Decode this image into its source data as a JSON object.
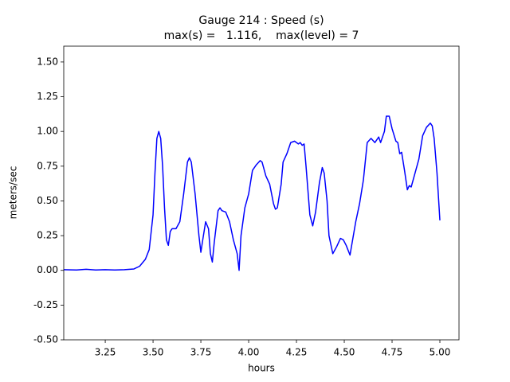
{
  "chart_data": {
    "type": "line",
    "title": "Gauge 214 : Speed (s)",
    "subtitle": "max(s) =   1.116,    max(level) = 7",
    "xlabel": "hours",
    "ylabel": "meters/sec",
    "color": "#0000ff",
    "x": [
      3.033,
      3.1,
      3.15,
      3.2,
      3.25,
      3.3,
      3.35,
      3.4,
      3.43,
      3.46,
      3.48,
      3.5,
      3.51,
      3.52,
      3.53,
      3.54,
      3.55,
      3.56,
      3.57,
      3.58,
      3.59,
      3.6,
      3.62,
      3.64,
      3.66,
      3.68,
      3.69,
      3.7,
      3.72,
      3.74,
      3.75,
      3.76,
      3.775,
      3.79,
      3.8,
      3.81,
      3.82,
      3.84,
      3.85,
      3.86,
      3.88,
      3.9,
      3.92,
      3.94,
      3.95,
      3.96,
      3.98,
      4.0,
      4.02,
      4.04,
      4.06,
      4.07,
      4.09,
      4.11,
      4.13,
      4.14,
      4.15,
      4.17,
      4.18,
      4.2,
      4.22,
      4.24,
      4.26,
      4.27,
      4.28,
      4.29,
      4.3,
      4.32,
      4.335,
      4.35,
      4.37,
      4.385,
      4.395,
      4.41,
      4.42,
      4.44,
      4.46,
      4.48,
      4.495,
      4.51,
      4.53,
      4.56,
      4.58,
      4.6,
      4.62,
      4.64,
      4.66,
      4.68,
      4.69,
      4.71,
      4.72,
      4.735,
      4.75,
      4.77,
      4.78,
      4.79,
      4.8,
      4.815,
      4.83,
      4.84,
      4.85,
      4.87,
      4.89,
      4.91,
      4.93,
      4.95,
      4.96,
      4.97,
      4.985,
      5.0
    ],
    "values": [
      0.005,
      0.003,
      0.008,
      0.003,
      0.005,
      0.003,
      0.005,
      0.01,
      0.03,
      0.08,
      0.15,
      0.4,
      0.7,
      0.95,
      1.0,
      0.95,
      0.75,
      0.45,
      0.22,
      0.18,
      0.28,
      0.3,
      0.3,
      0.35,
      0.55,
      0.78,
      0.81,
      0.78,
      0.55,
      0.25,
      0.13,
      0.22,
      0.35,
      0.3,
      0.12,
      0.06,
      0.2,
      0.43,
      0.45,
      0.43,
      0.42,
      0.35,
      0.22,
      0.12,
      0.0,
      0.25,
      0.45,
      0.55,
      0.72,
      0.76,
      0.79,
      0.78,
      0.68,
      0.62,
      0.48,
      0.44,
      0.45,
      0.62,
      0.78,
      0.84,
      0.92,
      0.93,
      0.91,
      0.92,
      0.9,
      0.91,
      0.75,
      0.4,
      0.32,
      0.42,
      0.63,
      0.74,
      0.7,
      0.5,
      0.25,
      0.12,
      0.17,
      0.23,
      0.22,
      0.18,
      0.11,
      0.35,
      0.48,
      0.65,
      0.92,
      0.95,
      0.92,
      0.96,
      0.92,
      1.0,
      1.11,
      1.11,
      1.02,
      0.93,
      0.92,
      0.84,
      0.85,
      0.72,
      0.58,
      0.61,
      0.6,
      0.7,
      0.8,
      0.97,
      1.03,
      1.06,
      1.04,
      0.95,
      0.7,
      0.36
    ],
    "xlim": [
      3.033,
      5.1
    ],
    "ylim": [
      -0.5,
      1.614
    ],
    "xticks": [
      3.25,
      {
        "value": 3.5,
        "label": "3.50"
      },
      3.75,
      {
        "value": 4.0,
        "label": "4.00"
      },
      4.25,
      {
        "value": 4.5,
        "label": "4.50"
      },
      4.75,
      {
        "value": 5.0,
        "label": "5.00"
      }
    ],
    "yticks": [
      {
        "value": -0.5,
        "label": "-0.50"
      },
      -0.25,
      {
        "value": 0.0,
        "label": "0.00"
      },
      0.25,
      {
        "value": 0.5,
        "label": "0.50"
      },
      0.75,
      {
        "value": 1.0,
        "label": "1.00"
      },
      1.25,
      {
        "value": 1.5,
        "label": "1.50"
      }
    ],
    "grid": false
  }
}
